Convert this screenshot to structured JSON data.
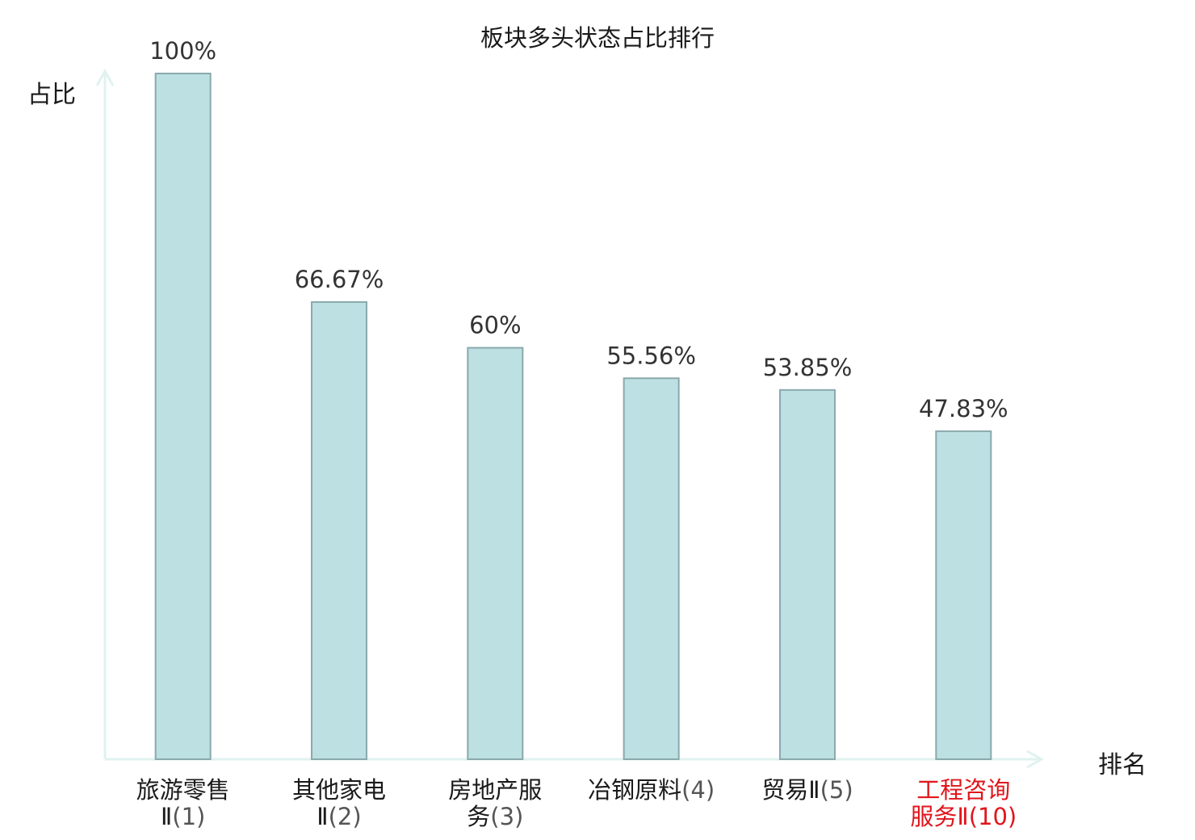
{
  "chart_data": {
    "type": "bar",
    "title": "板块多头状态占比排行",
    "xlabel": "排名",
    "ylabel": "占比",
    "categories": [
      {
        "name": "旅游零售Ⅱ",
        "rank": "(1)",
        "highlight": false
      },
      {
        "name": "其他家电Ⅱ",
        "rank": "(2)",
        "highlight": false
      },
      {
        "name": "房地产服务",
        "rank": "(3)",
        "highlight": false
      },
      {
        "name": "冶钢原料",
        "rank": "(4)",
        "highlight": false
      },
      {
        "name": "贸易Ⅱ",
        "rank": "(5)",
        "highlight": false
      },
      {
        "name": "工程咨询服务Ⅱ",
        "rank": "(10)",
        "highlight": true
      }
    ],
    "values": [
      100,
      66.67,
      60,
      55.56,
      53.85,
      47.83
    ],
    "value_labels": [
      "100%",
      "66.67%",
      "60%",
      "55.56%",
      "53.85%",
      "47.83%"
    ],
    "ylim": [
      0,
      100
    ],
    "grid": false,
    "legend": "none"
  },
  "colors": {
    "bar_fill": "#bde0e3",
    "bar_stroke": "#8aa9ad",
    "axis": "#e0f2ef",
    "label_text": "#333333",
    "highlight_text": "#e0161c"
  },
  "category_lines": [
    [
      "旅游零售",
      "Ⅱ(1)"
    ],
    [
      "其他家电",
      "Ⅱ(2)"
    ],
    [
      "房地产服",
      "务(3)"
    ],
    [
      "冶钢原料(4)"
    ],
    [
      "贸易Ⅱ(5)"
    ],
    [
      "工程咨询",
      "服务Ⅱ(10)"
    ]
  ]
}
